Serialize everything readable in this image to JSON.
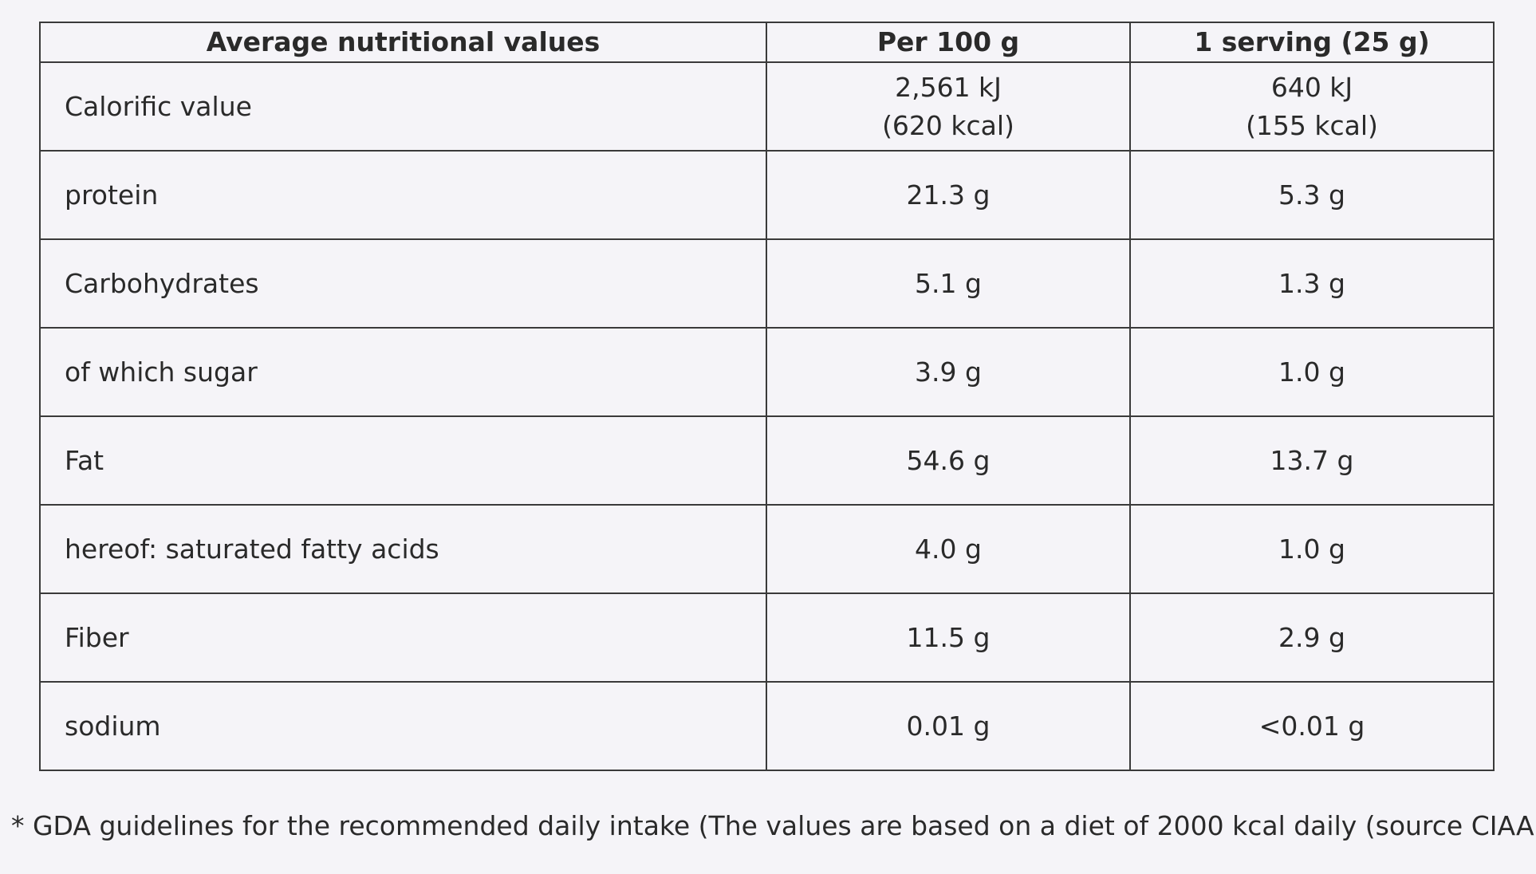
{
  "table": {
    "headers": [
      "Average nutritional values",
      "Per 100 g",
      "1 serving (25 g)"
    ],
    "rows": [
      {
        "name": "Calorific value",
        "per100": [
          "2,561 kJ",
          "(620 kcal)"
        ],
        "serving": [
          "640 kJ",
          "(155 kcal)"
        ]
      },
      {
        "name": "protein",
        "per100": [
          "21.3 g"
        ],
        "serving": [
          "5.3 g"
        ]
      },
      {
        "name": "Carbohydrates",
        "per100": [
          "5.1 g"
        ],
        "serving": [
          "1.3 g"
        ]
      },
      {
        "name": "of which sugar",
        "per100": [
          "3.9 g"
        ],
        "serving": [
          "1.0 g"
        ]
      },
      {
        "name": "Fat",
        "per100": [
          "54.6 g"
        ],
        "serving": [
          "13.7 g"
        ]
      },
      {
        "name": "hereof: saturated fatty acids",
        "per100": [
          "4.0 g"
        ],
        "serving": [
          "1.0 g"
        ]
      },
      {
        "name": "Fiber",
        "per100": [
          "11.5 g"
        ],
        "serving": [
          "2.9 g"
        ]
      },
      {
        "name": "sodium",
        "per100": [
          "0.01 g"
        ],
        "serving": [
          "<0.01 g"
        ]
      }
    ]
  },
  "footnote": "* GDA guidelines for the recommended daily intake (The values are based on a diet of 2000 kcal daily (source CIAA)"
}
